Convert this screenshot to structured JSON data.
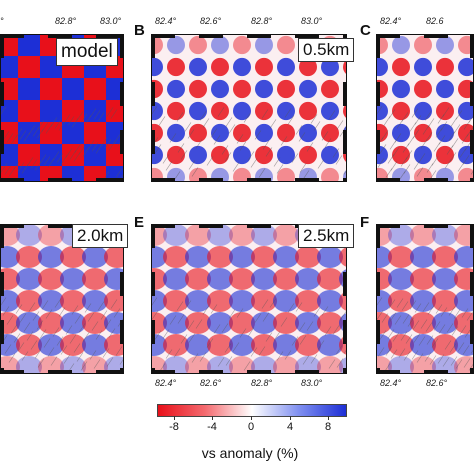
{
  "panels": [
    {
      "id": "A",
      "label": "",
      "badge": "model",
      "ticks": [
        "82.8°",
        "83.0°"
      ],
      "pattern": "checker",
      "tick_left": "°"
    },
    {
      "id": "B",
      "label": "B",
      "badge": "0.5km",
      "ticks": [
        "82.4°",
        "82.6°",
        "82.8°",
        "83.0°"
      ],
      "pattern": "recovered"
    },
    {
      "id": "C",
      "label": "C",
      "badge": "",
      "ticks": [
        "82.4°",
        "82.6"
      ],
      "pattern": "recovered"
    },
    {
      "id": "D",
      "label": "",
      "badge": "2.0km",
      "ticks": [],
      "pattern": "smooth"
    },
    {
      "id": "E",
      "label": "E",
      "badge": "2.5km",
      "ticks": [
        "82.4°",
        "82.6°",
        "82.8°",
        "83.0°"
      ],
      "pattern": "smooth"
    },
    {
      "id": "F",
      "label": "F",
      "badge": "",
      "ticks": [
        "82.4°",
        "82.6°"
      ],
      "pattern": "smooth"
    }
  ],
  "colorbar": {
    "ticks": [
      "-8",
      "-4",
      "0",
      "4",
      "8"
    ],
    "title": "vs anomaly  (%)",
    "colors": {
      "neg": "#e8101a",
      "mid": "#ffffff",
      "pos": "#1d2fd6"
    }
  }
}
